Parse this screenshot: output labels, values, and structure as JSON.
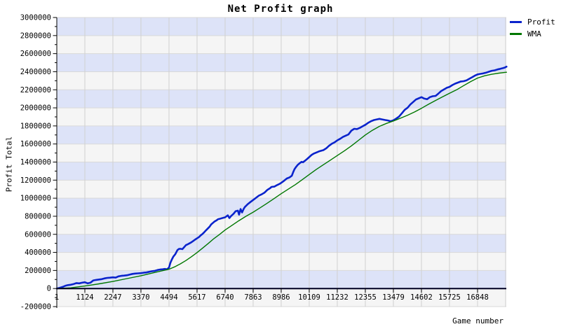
{
  "title": "Net Profit graph",
  "legend": [
    {
      "label": "Profit",
      "color": "#0a23cc"
    },
    {
      "label": "WMA",
      "color": "#007700"
    }
  ],
  "chart_data": {
    "type": "line",
    "title": "Net Profit graph",
    "xlabel": "Game number",
    "ylabel": "Profit Total",
    "xlim": [
      1,
      18000
    ],
    "ylim": [
      -200000,
      3000000
    ],
    "y_tick_step": 200000,
    "y_ticks": [
      3000000,
      2800000,
      2600000,
      2400000,
      2200000,
      2000000,
      1800000,
      1600000,
      1400000,
      1200000,
      1000000,
      800000,
      600000,
      400000,
      200000,
      0,
      -200000
    ],
    "x_ticks": [
      1,
      1124,
      2247,
      3370,
      4494,
      5617,
      6740,
      7863,
      8986,
      10109,
      11232,
      12355,
      13479,
      14602,
      15725,
      16848
    ],
    "x_grid_extra": [
      17971
    ],
    "grid": true,
    "legend_position": "top-right",
    "band_colors": [
      "#dde3f8",
      "#f5f5f5"
    ],
    "vgrid_color": "#d0d0d0",
    "hgrid_color": "#d9d9d9",
    "axis_color": "#000000",
    "zero_line_color": "#000022",
    "series": [
      {
        "name": "Profit",
        "color": "#0a23cc",
        "width": 2.6,
        "points": [
          [
            1,
            0
          ],
          [
            110,
            8000
          ],
          [
            230,
            18000
          ],
          [
            340,
            30000
          ],
          [
            450,
            38000
          ],
          [
            560,
            42000
          ],
          [
            680,
            50000
          ],
          [
            790,
            60000
          ],
          [
            900,
            57000
          ],
          [
            1010,
            64000
          ],
          [
            1124,
            70000
          ],
          [
            1240,
            57000
          ],
          [
            1350,
            65000
          ],
          [
            1460,
            90000
          ],
          [
            1570,
            95000
          ],
          [
            1690,
            100000
          ],
          [
            1800,
            104000
          ],
          [
            1910,
            112000
          ],
          [
            2020,
            118000
          ],
          [
            2130,
            120000
          ],
          [
            2247,
            124000
          ],
          [
            2360,
            121000
          ],
          [
            2470,
            135000
          ],
          [
            2580,
            140000
          ],
          [
            2700,
            143000
          ],
          [
            2810,
            147000
          ],
          [
            2920,
            155000
          ],
          [
            3030,
            162000
          ],
          [
            3140,
            166000
          ],
          [
            3250,
            168000
          ],
          [
            3370,
            170000
          ],
          [
            3480,
            175000
          ],
          [
            3590,
            178000
          ],
          [
            3700,
            185000
          ],
          [
            3820,
            192000
          ],
          [
            3930,
            196000
          ],
          [
            4040,
            205000
          ],
          [
            4130,
            210000
          ],
          [
            4240,
            213000
          ],
          [
            4330,
            217000
          ],
          [
            4410,
            212000
          ],
          [
            4494,
            232000
          ],
          [
            4550,
            285000
          ],
          [
            4610,
            322000
          ],
          [
            4670,
            355000
          ],
          [
            4750,
            382000
          ],
          [
            4830,
            425000
          ],
          [
            4890,
            438000
          ],
          [
            4940,
            440000
          ],
          [
            5030,
            436000
          ],
          [
            5110,
            460000
          ],
          [
            5170,
            480000
          ],
          [
            5250,
            490000
          ],
          [
            5310,
            500000
          ],
          [
            5390,
            512000
          ],
          [
            5450,
            524000
          ],
          [
            5530,
            540000
          ],
          [
            5617,
            556000
          ],
          [
            5700,
            572000
          ],
          [
            5760,
            588000
          ],
          [
            5840,
            605000
          ],
          [
            5900,
            622000
          ],
          [
            5980,
            645000
          ],
          [
            6040,
            662000
          ],
          [
            6120,
            685000
          ],
          [
            6180,
            710000
          ],
          [
            6260,
            728000
          ],
          [
            6320,
            742000
          ],
          [
            6400,
            755000
          ],
          [
            6460,
            768000
          ],
          [
            6520,
            772000
          ],
          [
            6630,
            780000
          ],
          [
            6740,
            788000
          ],
          [
            6850,
            810000
          ],
          [
            6910,
            780000
          ],
          [
            6970,
            800000
          ],
          [
            7080,
            828000
          ],
          [
            7160,
            856000
          ],
          [
            7250,
            862000
          ],
          [
            7300,
            818000
          ],
          [
            7360,
            880000
          ],
          [
            7420,
            842000
          ],
          [
            7480,
            880000
          ],
          [
            7530,
            902000
          ],
          [
            7640,
            932000
          ],
          [
            7750,
            957000
          ],
          [
            7863,
            980000
          ],
          [
            7980,
            1005000
          ],
          [
            8090,
            1028000
          ],
          [
            8200,
            1042000
          ],
          [
            8320,
            1062000
          ],
          [
            8430,
            1092000
          ],
          [
            8540,
            1110000
          ],
          [
            8600,
            1125000
          ],
          [
            8710,
            1128000
          ],
          [
            8820,
            1145000
          ],
          [
            8930,
            1160000
          ],
          [
            8986,
            1170000
          ],
          [
            9100,
            1192000
          ],
          [
            9210,
            1218000
          ],
          [
            9320,
            1230000
          ],
          [
            9410,
            1248000
          ],
          [
            9470,
            1290000
          ],
          [
            9520,
            1322000
          ],
          [
            9580,
            1345000
          ],
          [
            9660,
            1372000
          ],
          [
            9720,
            1385000
          ],
          [
            9800,
            1402000
          ],
          [
            9860,
            1398000
          ],
          [
            9920,
            1410000
          ],
          [
            10000,
            1428000
          ],
          [
            10109,
            1455000
          ],
          [
            10200,
            1478000
          ],
          [
            10280,
            1492000
          ],
          [
            10390,
            1505000
          ],
          [
            10500,
            1518000
          ],
          [
            10620,
            1528000
          ],
          [
            10674,
            1532000
          ],
          [
            10790,
            1552000
          ],
          [
            10900,
            1580000
          ],
          [
            11010,
            1602000
          ],
          [
            11120,
            1618000
          ],
          [
            11232,
            1640000
          ],
          [
            11350,
            1658000
          ],
          [
            11460,
            1678000
          ],
          [
            11570,
            1692000
          ],
          [
            11680,
            1705000
          ],
          [
            11798,
            1748000
          ],
          [
            11910,
            1768000
          ],
          [
            12020,
            1765000
          ],
          [
            12130,
            1778000
          ],
          [
            12240,
            1795000
          ],
          [
            12355,
            1812000
          ],
          [
            12470,
            1835000
          ],
          [
            12580,
            1852000
          ],
          [
            12700,
            1865000
          ],
          [
            12810,
            1872000
          ],
          [
            12920,
            1878000
          ],
          [
            13030,
            1872000
          ],
          [
            13140,
            1866000
          ],
          [
            13260,
            1860000
          ],
          [
            13370,
            1852000
          ],
          [
            13479,
            1862000
          ],
          [
            13590,
            1880000
          ],
          [
            13700,
            1902000
          ],
          [
            13820,
            1940000
          ],
          [
            13930,
            1978000
          ],
          [
            14050,
            2002000
          ],
          [
            14160,
            2038000
          ],
          [
            14270,
            2065000
          ],
          [
            14380,
            2092000
          ],
          [
            14490,
            2105000
          ],
          [
            14602,
            2118000
          ],
          [
            14720,
            2102000
          ],
          [
            14830,
            2096000
          ],
          [
            14940,
            2118000
          ],
          [
            15050,
            2128000
          ],
          [
            15170,
            2132000
          ],
          [
            15280,
            2158000
          ],
          [
            15390,
            2185000
          ],
          [
            15510,
            2205000
          ],
          [
            15620,
            2222000
          ],
          [
            15725,
            2232000
          ],
          [
            15840,
            2252000
          ],
          [
            15950,
            2268000
          ],
          [
            16070,
            2280000
          ],
          [
            16180,
            2292000
          ],
          [
            16294,
            2295000
          ],
          [
            16410,
            2305000
          ],
          [
            16520,
            2322000
          ],
          [
            16630,
            2338000
          ],
          [
            16740,
            2356000
          ],
          [
            16848,
            2370000
          ],
          [
            16960,
            2376000
          ],
          [
            17080,
            2382000
          ],
          [
            17200,
            2390000
          ],
          [
            17310,
            2400000
          ],
          [
            17420,
            2410000
          ],
          [
            17530,
            2415000
          ],
          [
            17650,
            2425000
          ],
          [
            17760,
            2432000
          ],
          [
            17870,
            2440000
          ],
          [
            17940,
            2446000
          ],
          [
            18008,
            2456000
          ]
        ]
      },
      {
        "name": "WMA",
        "color": "#007700",
        "width": 1.4,
        "points": [
          [
            1,
            0
          ],
          [
            560,
            8000
          ],
          [
            1124,
            28000
          ],
          [
            1690,
            52000
          ],
          [
            2247,
            78000
          ],
          [
            2810,
            110000
          ],
          [
            3370,
            142000
          ],
          [
            3930,
            178000
          ],
          [
            4494,
            214000
          ],
          [
            4720,
            240000
          ],
          [
            4940,
            272000
          ],
          [
            5170,
            310000
          ],
          [
            5390,
            352000
          ],
          [
            5617,
            398000
          ],
          [
            5840,
            448000
          ],
          [
            6070,
            500000
          ],
          [
            6290,
            552000
          ],
          [
            6520,
            600000
          ],
          [
            6740,
            648000
          ],
          [
            7020,
            700000
          ],
          [
            7300,
            752000
          ],
          [
            7580,
            800000
          ],
          [
            7863,
            845000
          ],
          [
            8150,
            895000
          ],
          [
            8430,
            945000
          ],
          [
            8710,
            998000
          ],
          [
            8986,
            1050000
          ],
          [
            9270,
            1100000
          ],
          [
            9550,
            1150000
          ],
          [
            9830,
            1205000
          ],
          [
            10109,
            1262000
          ],
          [
            10390,
            1318000
          ],
          [
            10670,
            1370000
          ],
          [
            10950,
            1420000
          ],
          [
            11232,
            1472000
          ],
          [
            11520,
            1525000
          ],
          [
            11800,
            1580000
          ],
          [
            12080,
            1640000
          ],
          [
            12355,
            1700000
          ],
          [
            12640,
            1752000
          ],
          [
            12920,
            1795000
          ],
          [
            13200,
            1828000
          ],
          [
            13479,
            1855000
          ],
          [
            13760,
            1885000
          ],
          [
            14046,
            1918000
          ],
          [
            14330,
            1955000
          ],
          [
            14602,
            1995000
          ],
          [
            14890,
            2040000
          ],
          [
            15170,
            2082000
          ],
          [
            15450,
            2122000
          ],
          [
            15725,
            2162000
          ],
          [
            16010,
            2200000
          ],
          [
            16294,
            2246000
          ],
          [
            16570,
            2290000
          ],
          [
            16848,
            2330000
          ],
          [
            17140,
            2355000
          ],
          [
            17420,
            2372000
          ],
          [
            17700,
            2384000
          ],
          [
            18008,
            2394000
          ]
        ]
      }
    ]
  }
}
